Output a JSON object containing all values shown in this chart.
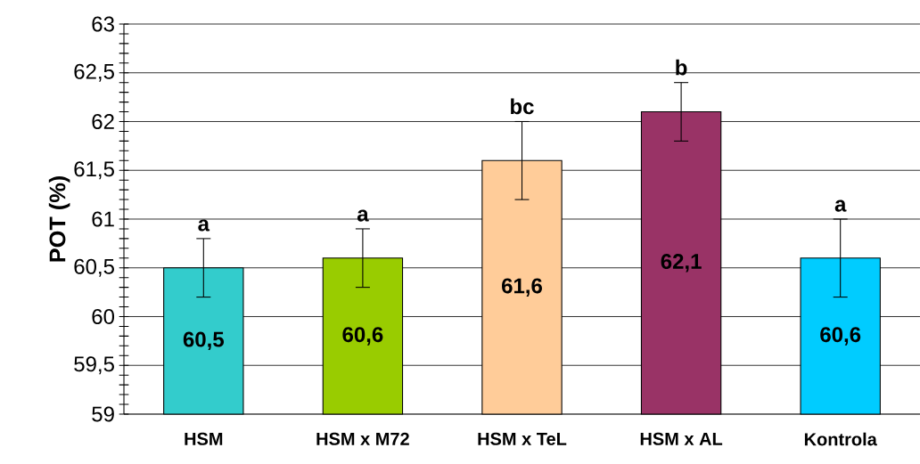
{
  "chart_data": {
    "type": "bar",
    "ylabel": "POT (%)",
    "categories": [
      "HSM",
      "HSM x M72",
      "HSM x TeL",
      "HSM x AL",
      "Kontrola"
    ],
    "values": [
      60.5,
      60.6,
      61.6,
      62.1,
      60.6
    ],
    "colors": [
      "#33cccc",
      "#99cc00",
      "#ffcc99",
      "#993366",
      "#00ccff"
    ],
    "errors": [
      0.3,
      0.3,
      0.4,
      0.3,
      0.4
    ],
    "value_labels": [
      "60,5",
      "60,6",
      "61,6",
      "62,1",
      "60,6"
    ],
    "annotations": [
      {
        "text": "a",
        "x": "HSM",
        "y": 60.8
      },
      {
        "text": "a",
        "x": "HSM x M72",
        "y": 60.9
      },
      {
        "text": "bc",
        "x": "HSM x TeL",
        "y": 62.0
      },
      {
        "text": "b",
        "x": "HSM x AL",
        "y": 62.4
      },
      {
        "text": "a",
        "x": "Kontrola",
        "y": 61.0
      }
    ],
    "ylim": [
      59,
      63
    ],
    "yticks": [
      59,
      {
        "value": 59.5,
        "label": "59,5"
      },
      60,
      {
        "value": 60.5,
        "label": "60,5"
      },
      61,
      {
        "value": 61.5,
        "label": "61,5"
      },
      62,
      {
        "value": 62.5,
        "label": "62,5"
      },
      63
    ],
    "grid": "y"
  }
}
